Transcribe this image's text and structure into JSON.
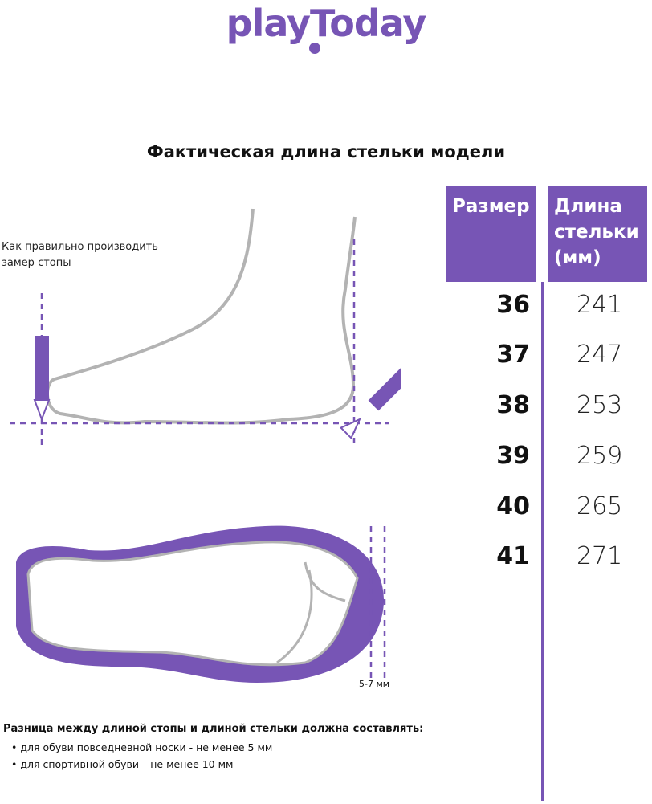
{
  "brand": {
    "logo_text": "playToday",
    "accent_color": "#7755b5"
  },
  "title": "Фактическая длина стельки модели",
  "measure_hint": [
    "Как правильно производить",
    "замер стопы"
  ],
  "table": {
    "headers": [
      "Размер",
      "Длина стельки (мм)"
    ],
    "rows": [
      {
        "size": "36",
        "length": "241"
      },
      {
        "size": "37",
        "length": "247"
      },
      {
        "size": "38",
        "length": "253"
      },
      {
        "size": "39",
        "length": "259"
      },
      {
        "size": "40",
        "length": "265"
      },
      {
        "size": "41",
        "length": "271"
      }
    ]
  },
  "allowance_label": "5-7 мм",
  "note": {
    "heading": "Разница между длиной стопы и длиной стельки должна составлять:",
    "items": [
      "для обуви повседневной носки -  не менее 5 мм",
      "для спортивной обуви – не менее 10 мм"
    ]
  }
}
